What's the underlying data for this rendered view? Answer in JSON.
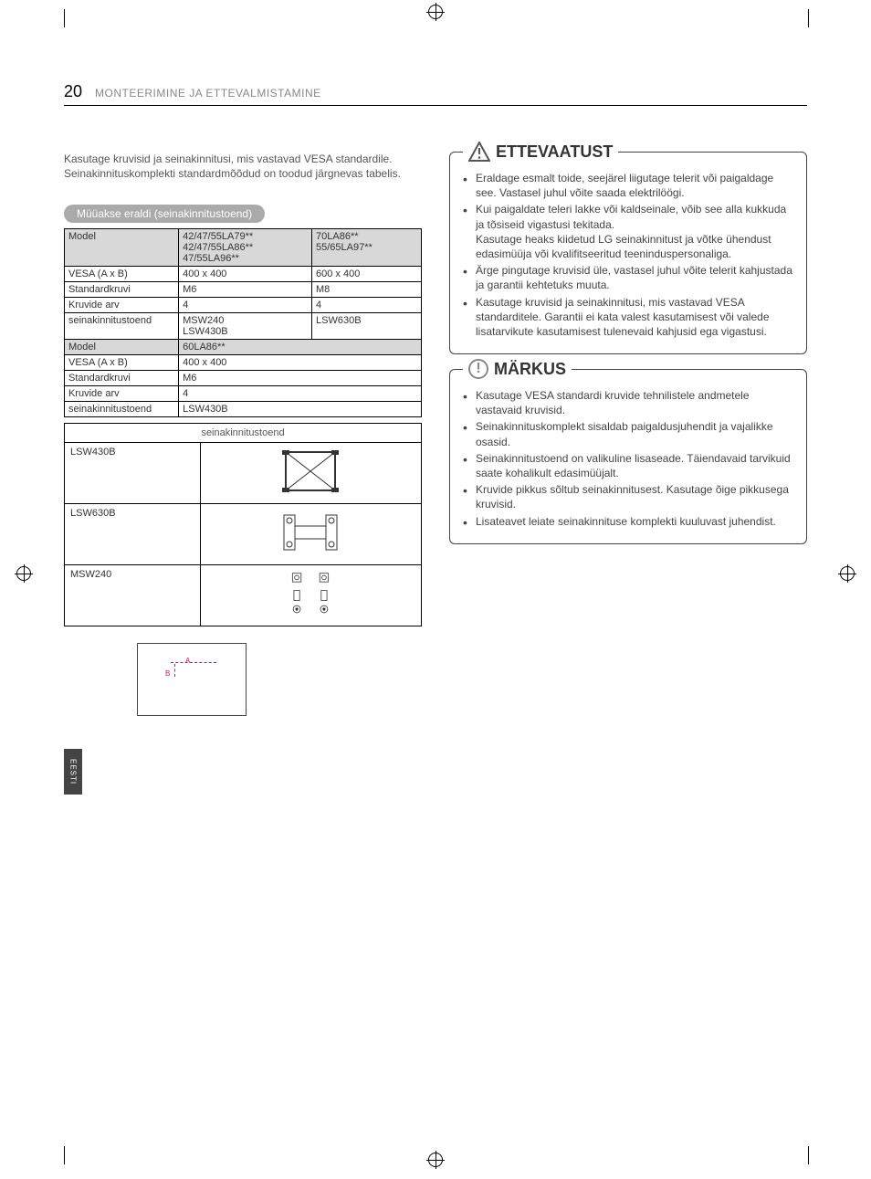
{
  "page": {
    "number": "20",
    "title": "MONTEERIMINE JA ETTEVALMISTAMINE"
  },
  "intro": "Kasutage kruvisid ja seinakinnitusi, mis vastavad VESA standardile. Seinakinnituskomplekti standardmõõdud on toodud järgnevas tabelis.",
  "section_tab": "Müüakse eraldi (seinakinnitustoend)",
  "lang_tab": "EESTI",
  "spec_rows1": [
    {
      "label": "Model",
      "c1": "42/47/55LA79**\n42/47/55LA86**\n47/55LA96**",
      "c2": "70LA86**\n55/65LA97**",
      "hdr": true
    },
    {
      "label": "VESA (A x B)",
      "c1": "400 x 400",
      "c2": "600 x 400"
    },
    {
      "label": "Standardkruvi",
      "c1": "M6",
      "c2": "M8"
    },
    {
      "label": "Kruvide arv",
      "c1": "4",
      "c2": "4"
    },
    {
      "label": "seinakinnitustoend",
      "c1": "MSW240\nLSW430B",
      "c2": "LSW630B"
    }
  ],
  "spec_rows2": [
    {
      "label": "Model",
      "c1": "60LA86**",
      "hdr": true
    },
    {
      "label": "VESA (A x B)",
      "c1": "400 x 400"
    },
    {
      "label": "Standardkruvi",
      "c1": "M6"
    },
    {
      "label": "Kruvide arv",
      "c1": "4"
    },
    {
      "label": "seinakinnitustoend",
      "c1": "LSW430B"
    }
  ],
  "brackets_header": "seinakinnitustoend",
  "brackets": [
    {
      "name": "LSW430B"
    },
    {
      "name": "LSW630B"
    },
    {
      "name": "MSW240"
    }
  ],
  "diag": {
    "A": "A",
    "B": "B"
  },
  "caution": {
    "title": "ETTEVAATUST",
    "items": [
      "Eraldage esmalt toide, seejärel liigutage telerit või paigaldage see. Vastasel juhul võite saada elektrilöögi.",
      "Kui paigaldate teleri lakke või kaldseinale, võib see alla kukkuda ja tõsiseid vigastusi tekitada.\nKasutage heaks kiidetud LG seinakinnitust ja võtke ühendust edasimüüja või kvalifitseeritud teeninduspersonaliga.",
      "Ärge pingutage kruvisid üle, vastasel juhul võite telerit kahjustada ja garantii kehtetuks muuta.",
      "Kasutage kruvisid ja seinakinnitusi, mis vastavad VESA standarditele. Garantii ei kata valest kasutamisest või valede lisatarvikute kasutamisest tulenevaid kahjusid ega vigastusi."
    ]
  },
  "note": {
    "title": "MÄRKUS",
    "items": [
      "Kasutage VESA standardi kruvide tehnilistele andmetele vastavaid kruvisid.",
      "Seinakinnituskomplekt sisaldab paigaldusjuhendit ja vajalikke osasid.",
      "Seinakinnitustoend on valikuline lisaseade. Täiendavaid tarvikuid saate kohalikult edasimüüjalt.",
      "Kruvide pikkus sõltub seinakinnitusest. Kasutage õige pikkusega kruvisid.",
      "Lisateavet leiate seinakinnituse komplekti kuuluvast juhendist."
    ]
  }
}
